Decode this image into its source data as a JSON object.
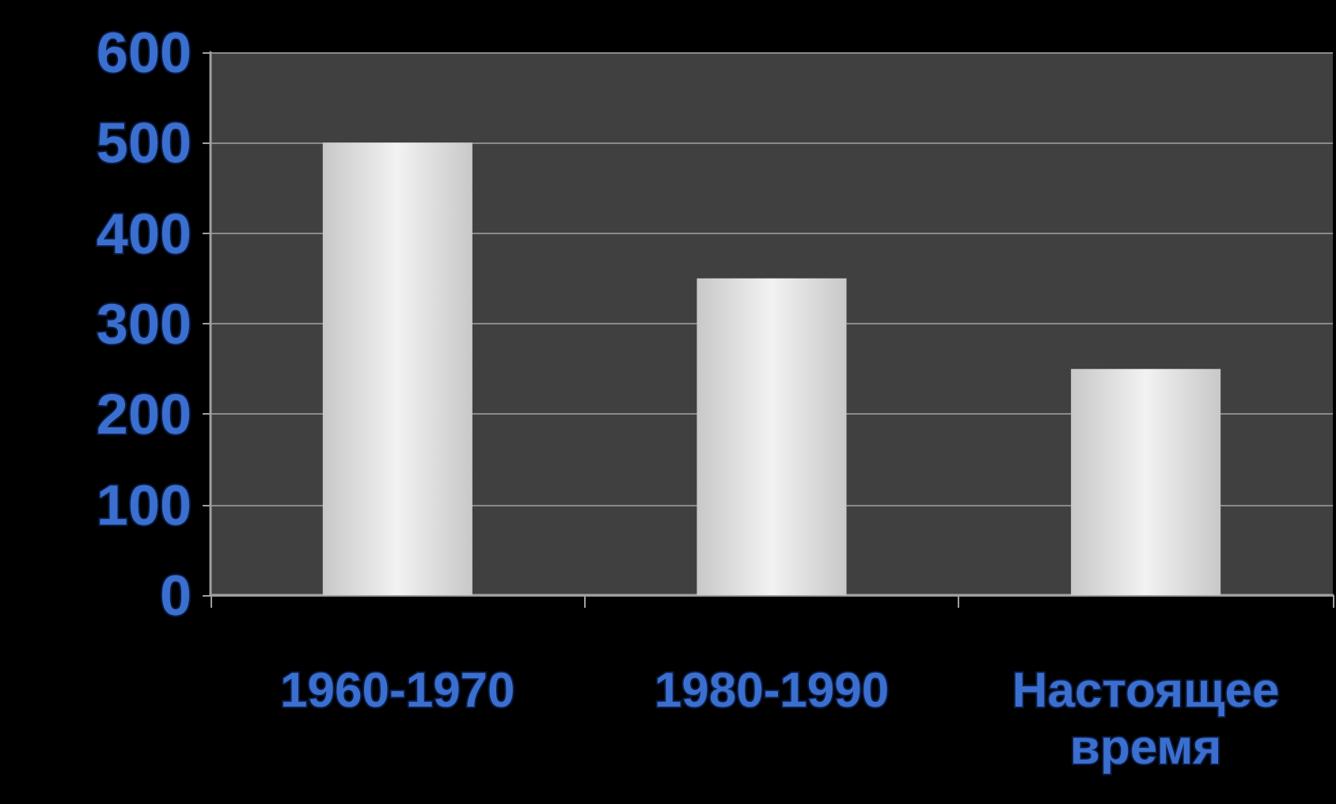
{
  "chart_data": {
    "type": "bar",
    "categories": [
      "1960-1970",
      "1980-1990",
      "Настоящее время"
    ],
    "values": [
      500,
      350,
      250
    ],
    "color": "#f2f2f2",
    "ylim": [
      0,
      600
    ],
    "yticks": [
      0,
      100,
      200,
      300,
      400,
      500,
      600
    ],
    "grid": "y"
  }
}
